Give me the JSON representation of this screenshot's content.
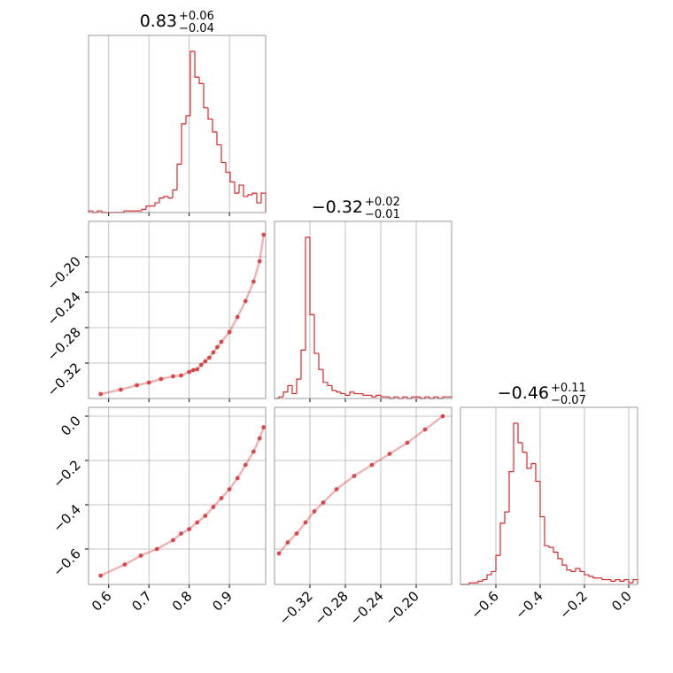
{
  "chart_data": {
    "type": "corner",
    "color": "#d62728",
    "grid": true,
    "params": [
      {
        "xlim": [
          0.55,
          0.99
        ],
        "ticks": [
          0.6,
          0.7,
          0.8,
          0.9
        ],
        "title": {
          "median": "0.83",
          "upper": "+0.06",
          "lower": "−0.04"
        },
        "bins": [
          0.55,
          0.561,
          0.572,
          0.583,
          0.594,
          0.605,
          0.616,
          0.627,
          0.638,
          0.649,
          0.66,
          0.671,
          0.682,
          0.693,
          0.704,
          0.715,
          0.726,
          0.737,
          0.748,
          0.759,
          0.77,
          0.781,
          0.792,
          0.803,
          0.814,
          0.825,
          0.836,
          0.847,
          0.858,
          0.869,
          0.88,
          0.891,
          0.902,
          0.913,
          0.924,
          0.935,
          0.946,
          0.957,
          0.968,
          0.979,
          0.99
        ],
        "counts": [
          1,
          0,
          1,
          0,
          0,
          0,
          0,
          0,
          1,
          1,
          1,
          1,
          2,
          4,
          4,
          6,
          9,
          10,
          9,
          14,
          30,
          55,
          60,
          100,
          84,
          80,
          65,
          58,
          50,
          42,
          31,
          25,
          19,
          12,
          17,
          10,
          11,
          12,
          6,
          12
        ]
      },
      {
        "xlim": [
          -0.36,
          -0.16
        ],
        "ticks": [
          {
            "value": -0.32,
            "label": "−0.32"
          },
          {
            "value": -0.28,
            "label": "−0.28"
          },
          {
            "value": -0.24,
            "label": "−0.24"
          },
          {
            "value": -0.2,
            "label": "−0.20"
          }
        ],
        "title": {
          "median": "−0.32",
          "upper": "+0.02",
          "lower": "−0.01"
        },
        "bins": [
          -0.36,
          -0.355,
          -0.35,
          -0.345,
          -0.34,
          -0.335,
          -0.33,
          -0.325,
          -0.32,
          -0.315,
          -0.31,
          -0.305,
          -0.3,
          -0.295,
          -0.29,
          -0.285,
          -0.28,
          -0.275,
          -0.27,
          -0.265,
          -0.26,
          -0.255,
          -0.25,
          -0.245,
          -0.24,
          -0.235,
          -0.23,
          -0.225,
          -0.22,
          -0.215,
          -0.21,
          -0.205,
          -0.2,
          -0.195,
          -0.19,
          -0.185,
          -0.18,
          -0.175,
          -0.17,
          -0.165,
          -0.16
        ],
        "counts": [
          0,
          1,
          4,
          8,
          3,
          12,
          30,
          100,
          52,
          28,
          18,
          10,
          8,
          5,
          4,
          3,
          2,
          4,
          3,
          3,
          2,
          2,
          1,
          2,
          1,
          1,
          0,
          1,
          0,
          1,
          0,
          1,
          1,
          0,
          1,
          0,
          1,
          0,
          1,
          1
        ]
      },
      {
        "xlim": [
          -0.76,
          0.04
        ],
        "ticks": [
          {
            "value": -0.6,
            "label": "−0.6"
          },
          {
            "value": -0.4,
            "label": "−0.4"
          },
          {
            "value": -0.2,
            "label": "−0.2"
          },
          {
            "value": 0,
            "label": "0.0"
          }
        ],
        "title": {
          "median": "−0.46",
          "upper": "+0.11",
          "lower": "−0.07"
        },
        "bins": [
          -0.76,
          -0.74,
          -0.72,
          -0.7,
          -0.68,
          -0.66,
          -0.64,
          -0.62,
          -0.6,
          -0.58,
          -0.56,
          -0.54,
          -0.52,
          -0.5,
          -0.48,
          -0.46,
          -0.44,
          -0.42,
          -0.4,
          -0.38,
          -0.36,
          -0.34,
          -0.32,
          -0.3,
          -0.28,
          -0.26,
          -0.24,
          -0.22,
          -0.2,
          -0.18,
          -0.16,
          -0.14,
          -0.12,
          -0.1,
          -0.08,
          -0.06,
          -0.04,
          -0.02,
          0,
          0.02,
          0.04
        ],
        "counts": [
          0,
          0,
          1,
          1,
          2,
          3,
          6,
          8,
          18,
          38,
          45,
          70,
          100,
          88,
          82,
          72,
          75,
          64,
          42,
          24,
          23,
          20,
          16,
          12,
          9,
          8,
          10,
          8,
          6,
          5,
          4,
          4,
          3,
          3,
          2,
          3,
          2,
          3,
          1,
          3
        ]
      }
    ],
    "pairs": [
      {
        "x_param": 0,
        "y_param": 1,
        "x": [
          0.58,
          0.63,
          0.67,
          0.7,
          0.73,
          0.76,
          0.78,
          0.8,
          0.81,
          0.82,
          0.83,
          0.84,
          0.85,
          0.86,
          0.87,
          0.88,
          0.9,
          0.92,
          0.94,
          0.96,
          0.975,
          0.985
        ],
        "y": [
          -0.355,
          -0.35,
          -0.345,
          -0.342,
          -0.338,
          -0.335,
          -0.334,
          -0.33,
          -0.328,
          -0.327,
          -0.322,
          -0.318,
          -0.314,
          -0.308,
          -0.302,
          -0.296,
          -0.285,
          -0.268,
          -0.25,
          -0.228,
          -0.205,
          -0.175
        ]
      },
      {
        "x_param": 0,
        "y_param": 2,
        "x": [
          0.58,
          0.64,
          0.68,
          0.72,
          0.76,
          0.78,
          0.8,
          0.82,
          0.84,
          0.86,
          0.88,
          0.9,
          0.92,
          0.94,
          0.96,
          0.975,
          0.985
        ],
        "y": [
          -0.72,
          -0.67,
          -0.63,
          -0.6,
          -0.56,
          -0.53,
          -0.51,
          -0.48,
          -0.45,
          -0.41,
          -0.37,
          -0.33,
          -0.28,
          -0.22,
          -0.16,
          -0.1,
          -0.05
        ]
      },
      {
        "x_param": 1,
        "y_param": 2,
        "x": [
          -0.355,
          -0.345,
          -0.335,
          -0.325,
          -0.315,
          -0.305,
          -0.29,
          -0.27,
          -0.25,
          -0.23,
          -0.21,
          -0.19,
          -0.17
        ],
        "y": [
          -0.62,
          -0.57,
          -0.53,
          -0.48,
          -0.43,
          -0.39,
          -0.33,
          -0.27,
          -0.22,
          -0.17,
          -0.12,
          -0.06,
          0
        ]
      }
    ]
  }
}
